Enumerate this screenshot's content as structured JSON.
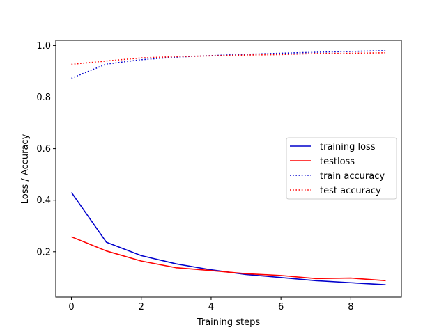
{
  "chart_data": {
    "type": "line",
    "title": "",
    "xlabel": "Training steps",
    "ylabel": "Loss / Accuracy",
    "xlim": [
      -0.45,
      9.45
    ],
    "ylim": [
      0.024,
      1.02
    ],
    "xticks": [
      0,
      2,
      4,
      6,
      8
    ],
    "yticks": [
      0.2,
      0.4,
      0.6,
      0.8,
      1.0
    ],
    "ytick_labels": [
      "0.2",
      "0.4",
      "0.6",
      "0.8",
      "1.0"
    ],
    "grid": false,
    "legend_position": "center-right",
    "x": [
      0,
      1,
      2,
      3,
      4,
      5,
      6,
      7,
      8,
      9
    ],
    "series": [
      {
        "name": "training loss",
        "color": "#0000cc",
        "style": "solid",
        "values": [
          0.43,
          0.237,
          0.185,
          0.153,
          0.13,
          0.112,
          0.1,
          0.088,
          0.08,
          0.072
        ]
      },
      {
        "name": "testloss",
        "color": "#ff0000",
        "style": "solid",
        "values": [
          0.258,
          0.203,
          0.164,
          0.138,
          0.127,
          0.115,
          0.108,
          0.096,
          0.098,
          0.088
        ]
      },
      {
        "name": "train accuracy",
        "color": "#0000cc",
        "style": "dotted",
        "values": [
          0.873,
          0.928,
          0.945,
          0.955,
          0.961,
          0.966,
          0.97,
          0.974,
          0.977,
          0.98
        ]
      },
      {
        "name": "test accuracy",
        "color": "#ff0000",
        "style": "dotted",
        "values": [
          0.927,
          0.94,
          0.952,
          0.957,
          0.96,
          0.963,
          0.965,
          0.969,
          0.97,
          0.972
        ]
      }
    ]
  }
}
